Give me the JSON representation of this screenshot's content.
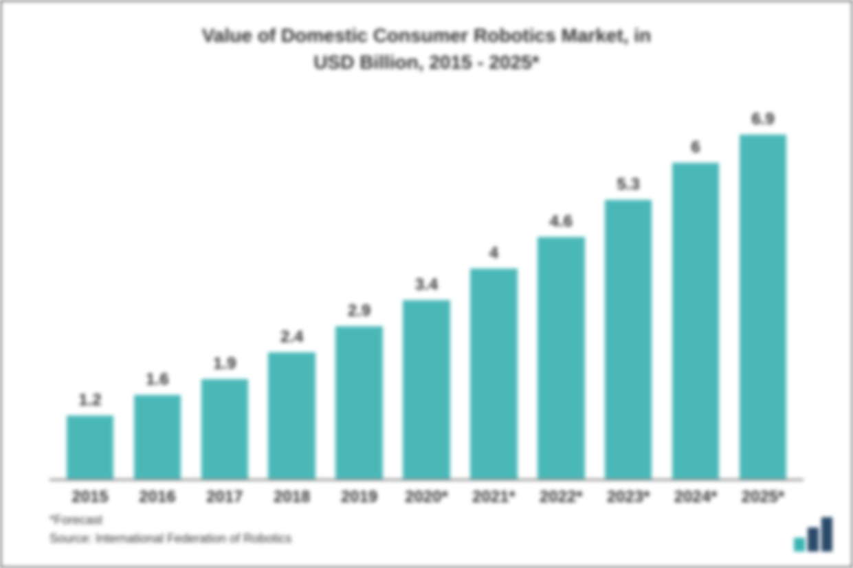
{
  "chart": {
    "type": "bar",
    "title_line1": "Value of Domestic Consumer Robotics Market, in",
    "title_line2": "USD Billion, 2015 - 2025*",
    "title_fontsize": 28,
    "categories": [
      "2015",
      "2016",
      "2017",
      "2018",
      "2019",
      "2020*",
      "2021*",
      "2022*",
      "2023*",
      "2024*",
      "2025*"
    ],
    "values": [
      1.2,
      1.6,
      1.9,
      2.4,
      2.9,
      3.4,
      4,
      4.6,
      5.3,
      6,
      6.9
    ],
    "value_labels": [
      "1.2",
      "1.6",
      "1.9",
      "2.4",
      "2.9",
      "3.4",
      "4",
      "4.6",
      "5.3",
      "6",
      "6.9"
    ],
    "bar_color": "#4bb8b8",
    "value_fontsize": 24,
    "label_fontsize": 24,
    "ylim_max": 7.0,
    "background_color": "#ffffff",
    "axis_color": "#888888",
    "text_color": "#333333",
    "bar_width_pct": 70,
    "footnote1": "*Forecast",
    "footnote2": "Source: International Federation of Robotics",
    "footnote_fontsize": 18,
    "logo_colors": {
      "bar1": "#3bb3b3",
      "bar2": "#2a4a6a",
      "bar3": "#2a4a6a"
    }
  }
}
